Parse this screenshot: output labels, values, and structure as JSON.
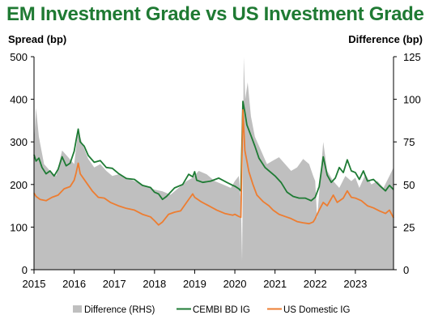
{
  "chart_data": {
    "type": "line",
    "title": "EM Investment Grade vs US Investment Grade",
    "ylabel_left": "Spread (bp)",
    "ylabel_right": "Difference (bp)",
    "ylim_left": [
      0,
      500
    ],
    "ylim_right": [
      0,
      125
    ],
    "yticks_left": [
      "0",
      "100",
      "200",
      "300",
      "400",
      "500"
    ],
    "yticks_right": [
      "0",
      "25",
      "50",
      "75",
      "100",
      "125"
    ],
    "xticks": [
      "2015",
      "2016",
      "2017",
      "2018",
      "2019",
      "2020",
      "2021",
      "2022",
      "2023"
    ],
    "grid": false,
    "legend_position": "bottom",
    "series": [
      {
        "name": "Difference (RHS)",
        "type": "area",
        "axis": "right",
        "color": "#bfbfbf",
        "points": [
          [
            2015.0,
            75
          ],
          [
            2015.05,
            95
          ],
          [
            2015.12,
            78
          ],
          [
            2015.25,
            62
          ],
          [
            2015.4,
            58
          ],
          [
            2015.55,
            55
          ],
          [
            2015.7,
            70
          ],
          [
            2015.85,
            66
          ],
          [
            2016.0,
            62
          ],
          [
            2016.1,
            82
          ],
          [
            2016.2,
            74
          ],
          [
            2016.35,
            65
          ],
          [
            2016.5,
            60
          ],
          [
            2016.65,
            62
          ],
          [
            2016.8,
            58
          ],
          [
            2016.95,
            55
          ],
          [
            2017.1,
            56
          ],
          [
            2017.3,
            54
          ],
          [
            2017.5,
            52
          ],
          [
            2017.7,
            50
          ],
          [
            2017.9,
            48
          ],
          [
            2018.0,
            47
          ],
          [
            2018.2,
            46
          ],
          [
            2018.4,
            44
          ],
          [
            2018.6,
            48
          ],
          [
            2018.8,
            52
          ],
          [
            2018.95,
            54
          ],
          [
            2019.1,
            58
          ],
          [
            2019.3,
            56
          ],
          [
            2019.5,
            52
          ],
          [
            2019.7,
            50
          ],
          [
            2019.9,
            48
          ],
          [
            2020.0,
            52
          ],
          [
            2020.1,
            55
          ],
          [
            2020.15,
            40
          ],
          [
            2020.18,
            5
          ],
          [
            2020.2,
            60
          ],
          [
            2020.22,
            125
          ],
          [
            2020.26,
            100
          ],
          [
            2020.32,
            110
          ],
          [
            2020.4,
            90
          ],
          [
            2020.5,
            78
          ],
          [
            2020.65,
            70
          ],
          [
            2020.8,
            62
          ],
          [
            2020.95,
            64
          ],
          [
            2021.1,
            66
          ],
          [
            2021.25,
            62
          ],
          [
            2021.4,
            58
          ],
          [
            2021.55,
            60
          ],
          [
            2021.7,
            65
          ],
          [
            2021.85,
            62
          ],
          [
            2021.95,
            55
          ],
          [
            2022.0,
            52
          ],
          [
            2022.05,
            30
          ],
          [
            2022.1,
            45
          ],
          [
            2022.2,
            75
          ],
          [
            2022.3,
            58
          ],
          [
            2022.45,
            52
          ],
          [
            2022.6,
            48
          ],
          [
            2022.75,
            55
          ],
          [
            2022.9,
            52
          ],
          [
            2023.0,
            54
          ],
          [
            2023.1,
            48
          ],
          [
            2023.25,
            56
          ],
          [
            2023.4,
            50
          ],
          [
            2023.55,
            52
          ],
          [
            2023.7,
            48
          ],
          [
            2023.85,
            55
          ],
          [
            2023.95,
            60
          ]
        ]
      },
      {
        "name": "CEMBI BD IG",
        "type": "line",
        "axis": "left",
        "color": "#1e7b34",
        "points": [
          [
            2015.0,
            270
          ],
          [
            2015.05,
            255
          ],
          [
            2015.12,
            262
          ],
          [
            2015.2,
            240
          ],
          [
            2015.3,
            225
          ],
          [
            2015.4,
            232
          ],
          [
            2015.5,
            220
          ],
          [
            2015.6,
            236
          ],
          [
            2015.7,
            265
          ],
          [
            2015.8,
            244
          ],
          [
            2015.9,
            250
          ],
          [
            2016.0,
            278
          ],
          [
            2016.05,
            305
          ],
          [
            2016.1,
            330
          ],
          [
            2016.15,
            300
          ],
          [
            2016.25,
            290
          ],
          [
            2016.35,
            268
          ],
          [
            2016.5,
            252
          ],
          [
            2016.65,
            256
          ],
          [
            2016.8,
            240
          ],
          [
            2016.95,
            238
          ],
          [
            2017.1,
            226
          ],
          [
            2017.3,
            214
          ],
          [
            2017.5,
            212
          ],
          [
            2017.7,
            198
          ],
          [
            2017.9,
            193
          ],
          [
            2018.0,
            182
          ],
          [
            2018.1,
            178
          ],
          [
            2018.2,
            165
          ],
          [
            2018.3,
            172
          ],
          [
            2018.5,
            192
          ],
          [
            2018.7,
            200
          ],
          [
            2018.85,
            224
          ],
          [
            2018.95,
            218
          ],
          [
            2019.0,
            230
          ],
          [
            2019.05,
            210
          ],
          [
            2019.2,
            205
          ],
          [
            2019.4,
            208
          ],
          [
            2019.6,
            215
          ],
          [
            2019.8,
            205
          ],
          [
            2019.95,
            198
          ],
          [
            2020.0,
            196
          ],
          [
            2020.1,
            190
          ],
          [
            2020.15,
            185
          ],
          [
            2020.2,
            395
          ],
          [
            2020.25,
            370
          ],
          [
            2020.3,
            340
          ],
          [
            2020.4,
            315
          ],
          [
            2020.5,
            290
          ],
          [
            2020.6,
            262
          ],
          [
            2020.75,
            240
          ],
          [
            2020.9,
            228
          ],
          [
            2021.0,
            220
          ],
          [
            2021.15,
            205
          ],
          [
            2021.3,
            182
          ],
          [
            2021.45,
            172
          ],
          [
            2021.6,
            168
          ],
          [
            2021.75,
            168
          ],
          [
            2021.9,
            162
          ],
          [
            2022.0,
            170
          ],
          [
            2022.1,
            195
          ],
          [
            2022.2,
            265
          ],
          [
            2022.3,
            222
          ],
          [
            2022.4,
            205
          ],
          [
            2022.5,
            215
          ],
          [
            2022.6,
            240
          ],
          [
            2022.7,
            228
          ],
          [
            2022.8,
            258
          ],
          [
            2022.9,
            232
          ],
          [
            2023.0,
            228
          ],
          [
            2023.1,
            212
          ],
          [
            2023.2,
            232
          ],
          [
            2023.3,
            208
          ],
          [
            2023.45,
            212
          ],
          [
            2023.6,
            198
          ],
          [
            2023.75,
            185
          ],
          [
            2023.85,
            198
          ],
          [
            2023.95,
            188
          ]
        ]
      },
      {
        "name": "US Domestic IG",
        "type": "line",
        "axis": "left",
        "color": "#ed7d31",
        "points": [
          [
            2015.0,
            180
          ],
          [
            2015.05,
            172
          ],
          [
            2015.15,
            165
          ],
          [
            2015.3,
            162
          ],
          [
            2015.45,
            170
          ],
          [
            2015.6,
            175
          ],
          [
            2015.75,
            190
          ],
          [
            2015.9,
            195
          ],
          [
            2016.0,
            210
          ],
          [
            2016.05,
            228
          ],
          [
            2016.1,
            250
          ],
          [
            2016.15,
            225
          ],
          [
            2016.3,
            205
          ],
          [
            2016.45,
            185
          ],
          [
            2016.6,
            170
          ],
          [
            2016.75,
            168
          ],
          [
            2016.9,
            158
          ],
          [
            2017.1,
            150
          ],
          [
            2017.3,
            144
          ],
          [
            2017.5,
            140
          ],
          [
            2017.7,
            130
          ],
          [
            2017.9,
            124
          ],
          [
            2018.0,
            115
          ],
          [
            2018.1,
            105
          ],
          [
            2018.2,
            112
          ],
          [
            2018.35,
            130
          ],
          [
            2018.5,
            135
          ],
          [
            2018.65,
            138
          ],
          [
            2018.8,
            158
          ],
          [
            2018.95,
            178
          ],
          [
            2019.0,
            170
          ],
          [
            2019.15,
            160
          ],
          [
            2019.35,
            150
          ],
          [
            2019.55,
            140
          ],
          [
            2019.75,
            132
          ],
          [
            2019.95,
            128
          ],
          [
            2020.0,
            130
          ],
          [
            2020.1,
            125
          ],
          [
            2020.15,
            123
          ],
          [
            2020.2,
            375
          ],
          [
            2020.25,
            280
          ],
          [
            2020.35,
            230
          ],
          [
            2020.45,
            200
          ],
          [
            2020.55,
            175
          ],
          [
            2020.7,
            160
          ],
          [
            2020.85,
            150
          ],
          [
            2020.95,
            140
          ],
          [
            2021.1,
            130
          ],
          [
            2021.25,
            125
          ],
          [
            2021.4,
            120
          ],
          [
            2021.55,
            113
          ],
          [
            2021.7,
            110
          ],
          [
            2021.85,
            108
          ],
          [
            2021.95,
            112
          ],
          [
            2022.0,
            120
          ],
          [
            2022.1,
            140
          ],
          [
            2022.2,
            158
          ],
          [
            2022.3,
            150
          ],
          [
            2022.45,
            175
          ],
          [
            2022.55,
            158
          ],
          [
            2022.7,
            168
          ],
          [
            2022.8,
            185
          ],
          [
            2022.9,
            170
          ],
          [
            2023.0,
            168
          ],
          [
            2023.15,
            162
          ],
          [
            2023.3,
            150
          ],
          [
            2023.45,
            145
          ],
          [
            2023.6,
            138
          ],
          [
            2023.75,
            132
          ],
          [
            2023.85,
            140
          ],
          [
            2023.95,
            122
          ]
        ]
      }
    ]
  }
}
